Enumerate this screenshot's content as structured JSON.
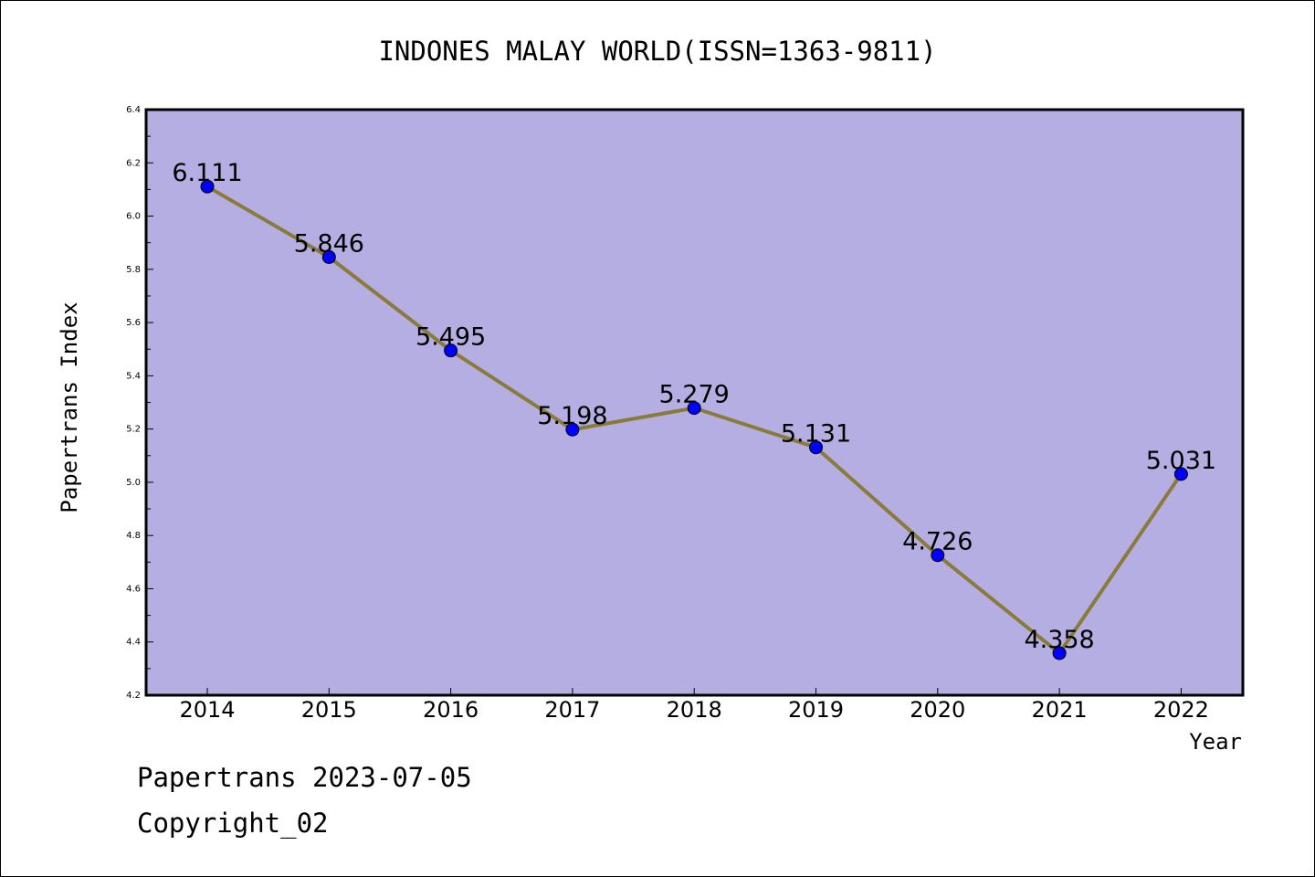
{
  "chart_data": {
    "type": "line",
    "title": "INDONES MALAY WORLD(ISSN=1363-9811)",
    "xlabel": "Year",
    "ylabel": "Papertrans Index",
    "categories": [
      "2014",
      "2015",
      "2016",
      "2017",
      "2018",
      "2019",
      "2020",
      "2021",
      "2022"
    ],
    "values": [
      6.111,
      5.846,
      5.495,
      5.198,
      5.279,
      5.131,
      4.726,
      4.358,
      5.031
    ],
    "data_labels": [
      "6.111",
      "5.846",
      "5.495",
      "5.198",
      "5.279",
      "5.131",
      "4.726",
      "4.358",
      "5.031"
    ],
    "ylim": [
      4.2,
      6.4
    ],
    "yticks": [
      "4.2",
      "4.4",
      "4.6",
      "4.8",
      "5.0",
      "5.2",
      "5.4",
      "5.6",
      "5.8",
      "6.0",
      "6.2",
      "6.4"
    ],
    "grid": false,
    "colors": {
      "plot_background": "#b5aee2",
      "line": "#8b7b3a",
      "marker": "#0000ff"
    }
  },
  "footer": {
    "line1": "Papertrans 2023-07-05",
    "line2": "Copyright_02"
  }
}
